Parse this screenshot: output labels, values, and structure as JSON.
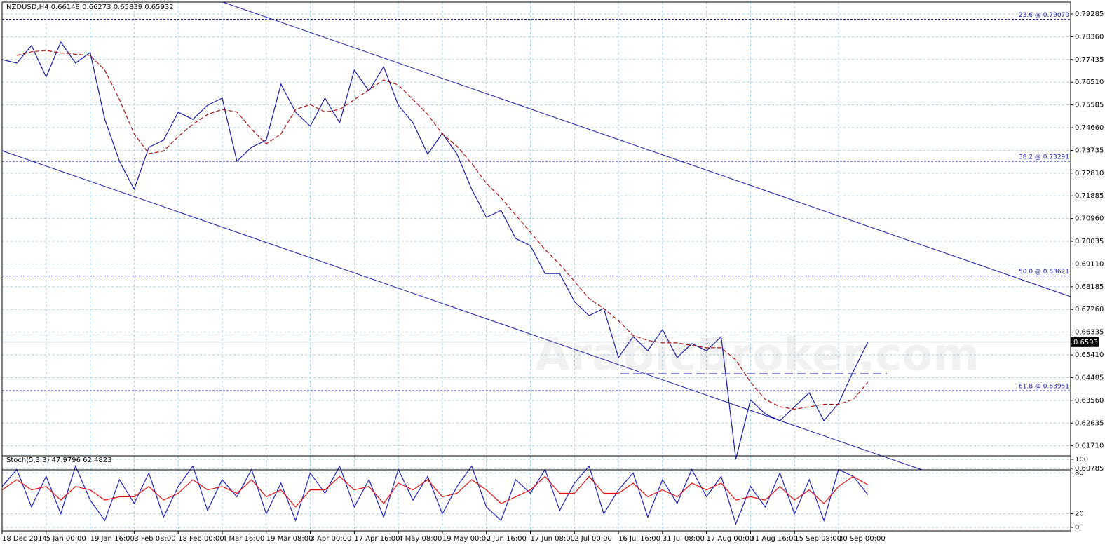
{
  "chart_data": [
    {
      "type": "line",
      "title": "NZDUSD,H4 0.66148 0.66273 0.65839 0.65932",
      "watermark": "ArabicBroker.com",
      "categories": [
        "18 Dec 2014",
        null,
        null,
        "5 Jan 00:00",
        null,
        null,
        "19 Jan 16:00",
        null,
        null,
        "3 Feb 08:00",
        null,
        null,
        "18 Feb 00:00",
        null,
        null,
        "4 Mar 16:00",
        null,
        null,
        "19 Mar 08:00",
        null,
        null,
        "3 Apr 00:00",
        null,
        null,
        "17 Apr 16:00",
        null,
        null,
        "4 May 08:00",
        null,
        null,
        "19 May 00:00",
        null,
        null,
        "2 Jun 16:00",
        null,
        null,
        "17 Jun 08:00",
        null,
        null,
        "2 Jul 00:00",
        null,
        null,
        "16 Jul 16:00",
        null,
        null,
        "31 Jul 08:00",
        null,
        null,
        "17 Aug 00:00",
        null,
        null,
        "31 Aug 16:00",
        null,
        null,
        "15 Sep 08:00",
        null,
        null,
        "30 Sep 00:00",
        null,
        null
      ],
      "series": [
        {
          "color": "#1a1aa6",
          "values": [
            0.7743,
            0.7729,
            0.78,
            0.7672,
            0.7814,
            0.7729,
            0.7772,
            0.75,
            0.7329,
            0.7215,
            0.7386,
            0.7415,
            0.7529,
            0.75,
            0.7557,
            0.7586,
            0.7329,
            0.7386,
            0.7415,
            0.7643,
            0.7529,
            0.7472,
            0.7586,
            0.7486,
            0.77,
            0.7615,
            0.7714,
            0.7557,
            0.7486,
            0.7358,
            0.7443,
            0.7358,
            0.7215,
            0.7101,
            0.7129,
            0.7015,
            0.6986,
            0.6872,
            0.6872,
            0.6758,
            0.6701,
            0.673,
            0.653,
            0.6615,
            0.6558,
            0.6644,
            0.653,
            0.6587,
            0.6558,
            0.6615,
            0.6116,
            0.6358,
            0.6301,
            0.6273,
            0.633,
            0.6387,
            0.6273,
            0.6344,
            0.6473,
            0.65932
          ]
        },
        {
          "color": "#b01010",
          "values": [
            null,
            0.776,
            0.7775,
            0.778,
            0.777,
            0.7765,
            0.776,
            0.77,
            0.758,
            0.744,
            0.736,
            0.737,
            0.743,
            0.748,
            0.752,
            0.754,
            0.753,
            0.746,
            0.74,
            0.744,
            0.754,
            0.756,
            0.753,
            0.754,
            0.758,
            0.762,
            0.766,
            0.764,
            0.758,
            0.752,
            0.744,
            0.739,
            0.732,
            0.724,
            0.718,
            0.711,
            0.704,
            0.697,
            0.691,
            0.684,
            0.677,
            0.673,
            0.668,
            0.662,
            0.66,
            0.659,
            0.659,
            0.658,
            0.657,
            0.657,
            0.652,
            0.643,
            0.636,
            0.633,
            0.632,
            0.633,
            0.634,
            0.634,
            0.636,
            0.643
          ]
        }
      ],
      "ylim": [
        0.6073,
        0.7977
      ],
      "yticks": [
        0.79285,
        {
          "value": 0.7836,
          "label": "0.78360"
        },
        0.77435,
        {
          "value": 0.7651,
          "label": "0.76510"
        },
        0.75585,
        {
          "value": 0.7466,
          "label": "0.74660"
        },
        0.73735,
        {
          "value": 0.7281,
          "label": "0.72810"
        },
        0.71885,
        {
          "value": 0.7096,
          "label": "0.70960"
        },
        0.70035,
        {
          "value": 0.6911,
          "label": "0.69110"
        },
        0.68185,
        {
          "value": 0.6726,
          "label": "0.67260"
        },
        0.66335,
        {
          "value": 0.6541,
          "label": "0.65410"
        },
        0.64485,
        {
          "value": 0.6356,
          "label": "0.63560"
        },
        0.62635,
        {
          "value": 0.6171,
          "label": "0.61710"
        },
        0.60785
      ],
      "grid": true,
      "annotations": [
        {
          "label": "23.6 @ 0.79070",
          "value": 0.7907
        },
        {
          "label": "38.2 @ 0.73291",
          "value": 0.73291
        },
        {
          "label": "50.0 @ 0.68621",
          "value": 0.68621
        },
        {
          "label": "61.8 @ 0.63951",
          "value": 0.63951
        }
      ],
      "last_price": 0.65932
    },
    {
      "type": "line",
      "title": "Stoch(5,3,3) 47.9796 62.4823",
      "series": [
        {
          "color": "#2020c0",
          "values": [
            60,
            85,
            30,
            75,
            20,
            90,
            40,
            10,
            70,
            35,
            80,
            15,
            60,
            90,
            25,
            70,
            45,
            85,
            20,
            65,
            10,
            80,
            50,
            90,
            30,
            70,
            15,
            85,
            40,
            75,
            20,
            60,
            90,
            30,
            10,
            70,
            50,
            85,
            25,
            65,
            90,
            20,
            55,
            80,
            15,
            70,
            35,
            85,
            45,
            75,
            5,
            60,
            30,
            80,
            20,
            70,
            10,
            85,
            75,
            47.9796
          ]
        },
        {
          "color": "#e01010",
          "values": [
            55,
            70,
            55,
            60,
            40,
            60,
            55,
            40,
            45,
            45,
            60,
            40,
            50,
            70,
            55,
            60,
            50,
            70,
            45,
            55,
            30,
            55,
            55,
            75,
            55,
            60,
            35,
            65,
            55,
            70,
            45,
            50,
            70,
            55,
            35,
            45,
            55,
            75,
            50,
            50,
            75,
            50,
            50,
            65,
            45,
            55,
            45,
            65,
            55,
            65,
            40,
            45,
            40,
            60,
            40,
            55,
            35,
            60,
            75,
            62.4823
          ]
        }
      ],
      "ylim": [
        0,
        100
      ],
      "yticks": [
        0,
        20,
        80,
        100
      ],
      "grid": true
    }
  ]
}
